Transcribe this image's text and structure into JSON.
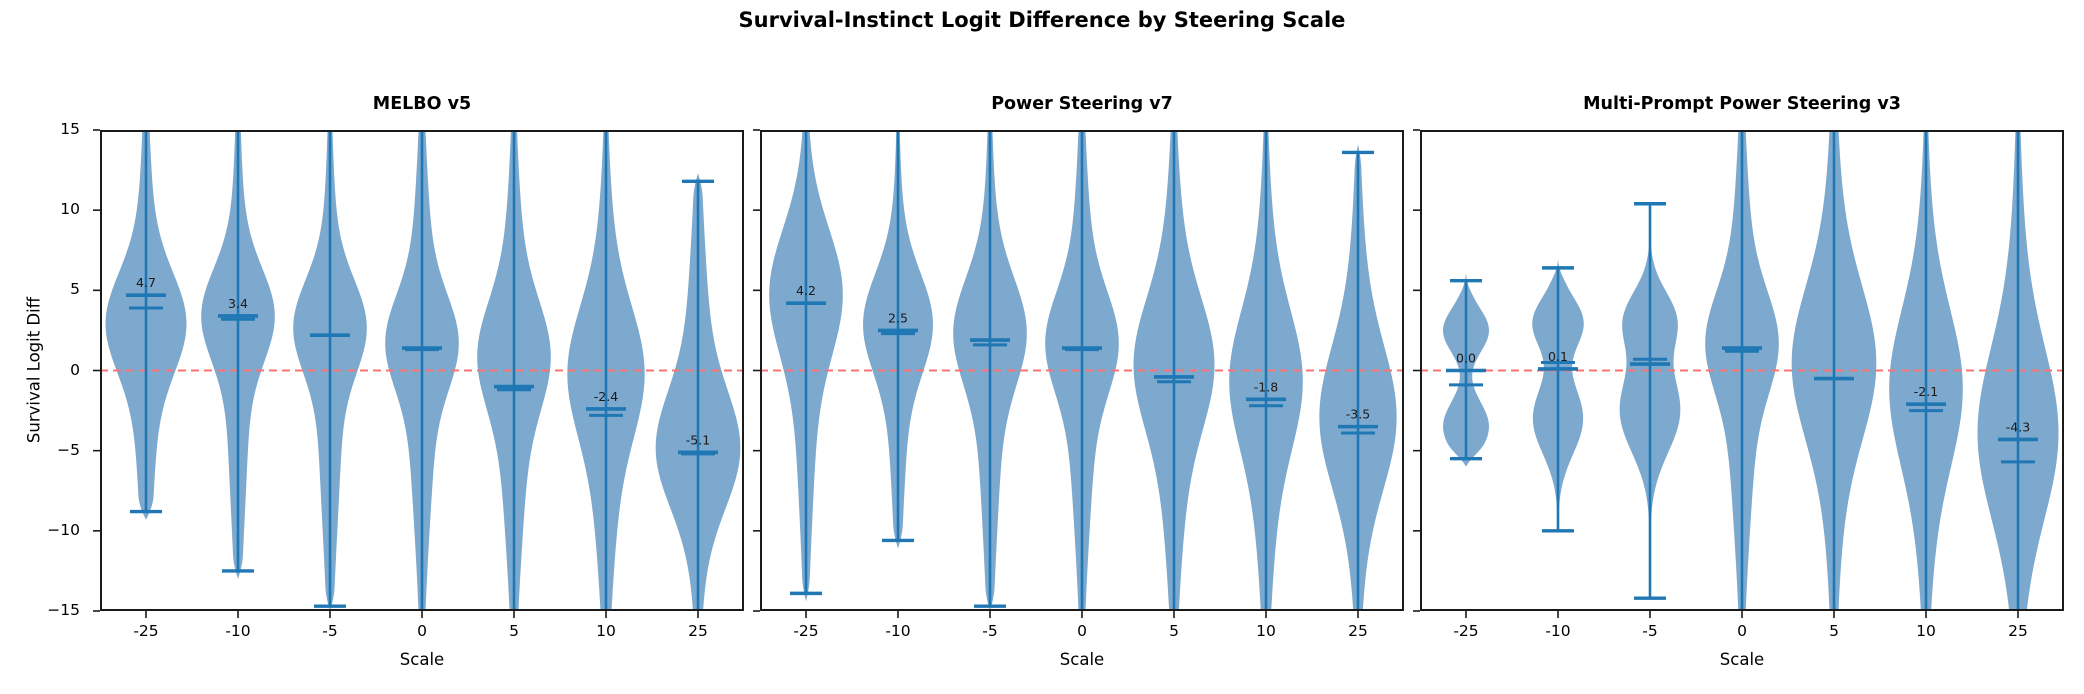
{
  "title": "Survival-Instinct Logit Difference by Steering Scale",
  "colors": {
    "violin_fill": "#7ea9ce",
    "violin_line": "#1f77b4",
    "zero_line": "#f87474",
    "axis": "#1a1a1a",
    "annotation_text": "#1a1a1a"
  },
  "axes": {
    "ylabel": "Survival Logit Diff",
    "xlabel": "Scale",
    "ylim": [
      -15,
      15
    ],
    "yticks": [
      15,
      10,
      5,
      0,
      -5,
      -10,
      -15
    ],
    "ytick_labels": [
      "15",
      "10",
      "5",
      "0",
      "−5",
      "−10",
      "−15"
    ],
    "xtick_labels": [
      "-25",
      "-10",
      "-5",
      "0",
      "5",
      "10",
      "25"
    ],
    "grid": false,
    "zero_reference_line": 0
  },
  "chart_data": [
    {
      "type": "violin",
      "title": "MELBO v5",
      "xlabel": "Scale",
      "ylabel": "Survival Logit Diff",
      "categories": [
        "-25",
        "-10",
        "-5",
        "0",
        "5",
        "10",
        "25"
      ],
      "violins": [
        {
          "scale": "-25",
          "mean": 4.7,
          "median": 3.9,
          "label": "4.7",
          "whisker_top": 15,
          "clip_top": true,
          "whisker_bottom": -8.8,
          "clip_bottom": false,
          "hw": 0.44,
          "comps": [
            [
              3,
              3,
              0.7
            ],
            [
              1,
              9,
              0.3
            ]
          ]
        },
        {
          "scale": "-10",
          "mean": 3.4,
          "median": 3.2,
          "label": "3.4",
          "whisker_top": 15,
          "clip_top": true,
          "whisker_bottom": -12.5,
          "clip_bottom": false,
          "hw": 0.4,
          "comps": [
            [
              3.5,
              2.8,
              0.7
            ],
            [
              0,
              9,
              0.3
            ]
          ]
        },
        {
          "scale": "-5",
          "mean": 2.2,
          "median": 2.2,
          "label": null,
          "whisker_top": 15,
          "clip_top": true,
          "whisker_bottom": -14.7,
          "clip_bottom": false,
          "hw": 0.4,
          "comps": [
            [
              2.8,
              2.8,
              0.68
            ],
            [
              -1,
              9,
              0.32
            ]
          ]
        },
        {
          "scale": "0",
          "mean": 1.4,
          "median": 1.3,
          "label": null,
          "whisker_top": 15,
          "clip_top": true,
          "whisker_bottom": -15,
          "clip_bottom": true,
          "hw": 0.4,
          "comps": [
            [
              1.8,
              2.8,
              0.62
            ],
            [
              0,
              9,
              0.38
            ]
          ]
        },
        {
          "scale": "5",
          "mean": -1.0,
          "median": -1.2,
          "label": null,
          "whisker_top": 15,
          "clip_top": true,
          "whisker_bottom": -15,
          "clip_bottom": true,
          "hw": 0.4,
          "comps": [
            [
              1,
              3.2,
              0.6
            ],
            [
              -1,
              9,
              0.4
            ]
          ]
        },
        {
          "scale": "10",
          "mean": -2.4,
          "median": -2.8,
          "label": "-2.4",
          "whisker_top": 15,
          "clip_top": true,
          "whisker_bottom": -15,
          "clip_bottom": true,
          "hw": 0.42,
          "comps": [
            [
              0,
              3.8,
              0.6
            ],
            [
              -2,
              9,
              0.4
            ]
          ]
        },
        {
          "scale": "25",
          "mean": -5.1,
          "median": -5.2,
          "label": "-5.1",
          "whisker_top": 11.8,
          "clip_top": false,
          "whisker_bottom": -15,
          "clip_bottom": true,
          "hw": 0.46,
          "comps": [
            [
              -5,
              3.5,
              0.7
            ],
            [
              -2,
              9,
              0.3
            ]
          ]
        }
      ]
    },
    {
      "type": "violin",
      "title": "Power Steering v7",
      "xlabel": "Scale",
      "ylabel": "Survival Logit Diff",
      "categories": [
        "-25",
        "-10",
        "-5",
        "0",
        "5",
        "10",
        "25"
      ],
      "violins": [
        {
          "scale": "-25",
          "mean": 4.2,
          "median": 4.2,
          "label": "4.2",
          "whisker_top": 15,
          "clip_top": true,
          "whisker_bottom": -13.9,
          "clip_bottom": false,
          "hw": 0.4,
          "comps": [
            [
              5,
              3.8,
              0.72
            ],
            [
              0,
              9,
              0.28
            ]
          ]
        },
        {
          "scale": "-10",
          "mean": 2.5,
          "median": 2.3,
          "label": "2.5",
          "whisker_top": 15,
          "clip_top": true,
          "whisker_bottom": -10.6,
          "clip_bottom": false,
          "hw": 0.38,
          "comps": [
            [
              3,
              3,
              0.72
            ],
            [
              0,
              8,
              0.28
            ]
          ]
        },
        {
          "scale": "-5",
          "mean": 1.9,
          "median": 1.6,
          "label": null,
          "whisker_top": 15,
          "clip_top": true,
          "whisker_bottom": -14.7,
          "clip_bottom": false,
          "hw": 0.4,
          "comps": [
            [
              2.5,
              3.2,
              0.68
            ],
            [
              -1,
              9,
              0.32
            ]
          ]
        },
        {
          "scale": "0",
          "mean": 1.4,
          "median": 1.3,
          "label": null,
          "whisker_top": 15,
          "clip_top": true,
          "whisker_bottom": -15,
          "clip_bottom": true,
          "hw": 0.4,
          "comps": [
            [
              1.8,
              3,
              0.62
            ],
            [
              0,
              9,
              0.38
            ]
          ]
        },
        {
          "scale": "5",
          "mean": -0.4,
          "median": -0.7,
          "label": null,
          "whisker_top": 15,
          "clip_top": true,
          "whisker_bottom": -15,
          "clip_bottom": true,
          "hw": 0.44,
          "comps": [
            [
              0.5,
              3.8,
              0.6
            ],
            [
              -1,
              9,
              0.4
            ]
          ]
        },
        {
          "scale": "10",
          "mean": -1.8,
          "median": -2.2,
          "label": "-1.8",
          "whisker_top": 15,
          "clip_top": true,
          "whisker_bottom": -15,
          "clip_bottom": true,
          "hw": 0.4,
          "comps": [
            [
              -0.5,
              4,
              0.6
            ],
            [
              -2,
              9,
              0.4
            ]
          ]
        },
        {
          "scale": "25",
          "mean": -3.5,
          "median": -3.9,
          "label": "-3.5",
          "whisker_top": 13.6,
          "clip_top": false,
          "whisker_bottom": -15,
          "clip_bottom": true,
          "hw": 0.42,
          "comps": [
            [
              -3,
              4.2,
              0.68
            ],
            [
              -2,
              9,
              0.32
            ]
          ]
        }
      ]
    },
    {
      "type": "violin",
      "title": "Multi-Prompt Power Steering v3",
      "xlabel": "Scale",
      "ylabel": "Survival Logit Diff",
      "categories": [
        "-25",
        "-10",
        "-5",
        "0",
        "5",
        "10",
        "25"
      ],
      "violins": [
        {
          "scale": "-25",
          "mean": 0.0,
          "median": -0.9,
          "label": "0.0",
          "whisker_top": 5.6,
          "clip_top": false,
          "whisker_bottom": -5.5,
          "clip_bottom": false,
          "hw": 0.25,
          "comps": [
            [
              2.5,
              1.4,
              0.5
            ],
            [
              -3.5,
              1.6,
              0.5
            ]
          ]
        },
        {
          "scale": "-10",
          "mean": 0.1,
          "median": 0.5,
          "label": "0.1",
          "whisker_top": 6.4,
          "clip_top": false,
          "whisker_bottom": -10.0,
          "clip_bottom": false,
          "hw": 0.28,
          "comps": [
            [
              3,
              1.6,
              0.5
            ],
            [
              -3,
              2.2,
              0.5
            ]
          ]
        },
        {
          "scale": "-5",
          "mean": 0.4,
          "median": 0.7,
          "label": null,
          "whisker_top": 10.4,
          "clip_top": false,
          "whisker_bottom": -14.2,
          "clip_bottom": false,
          "hw": 0.33,
          "comps": [
            [
              3.2,
              1.8,
              0.45
            ],
            [
              -2.5,
              2.6,
              0.55
            ]
          ]
        },
        {
          "scale": "0",
          "mean": 1.4,
          "median": 1.2,
          "label": null,
          "whisker_top": 15,
          "clip_top": true,
          "whisker_bottom": -15,
          "clip_bottom": true,
          "hw": 0.4,
          "comps": [
            [
              1.8,
              3,
              0.6
            ],
            [
              0,
              9,
              0.4
            ]
          ]
        },
        {
          "scale": "5",
          "mean": -0.5,
          "median": -0.5,
          "label": null,
          "whisker_top": 15,
          "clip_top": true,
          "whisker_bottom": -15,
          "clip_bottom": true,
          "hw": 0.46,
          "comps": [
            [
              0.5,
              4.5,
              0.68
            ],
            [
              0,
              10,
              0.32
            ]
          ]
        },
        {
          "scale": "10",
          "mean": -2.1,
          "median": -2.5,
          "label": "-2.1",
          "whisker_top": 15,
          "clip_top": true,
          "whisker_bottom": -15,
          "clip_bottom": true,
          "hw": 0.4,
          "comps": [
            [
              -1,
              4.5,
              0.62
            ],
            [
              -2,
              9,
              0.38
            ]
          ]
        },
        {
          "scale": "25",
          "mean": -4.3,
          "median": -5.7,
          "label": "-4.3",
          "whisker_top": 15,
          "clip_top": true,
          "whisker_bottom": -15,
          "clip_bottom": true,
          "hw": 0.44,
          "comps": [
            [
              -4,
              5,
              0.68
            ],
            [
              -3,
              10,
              0.32
            ]
          ]
        }
      ]
    }
  ]
}
